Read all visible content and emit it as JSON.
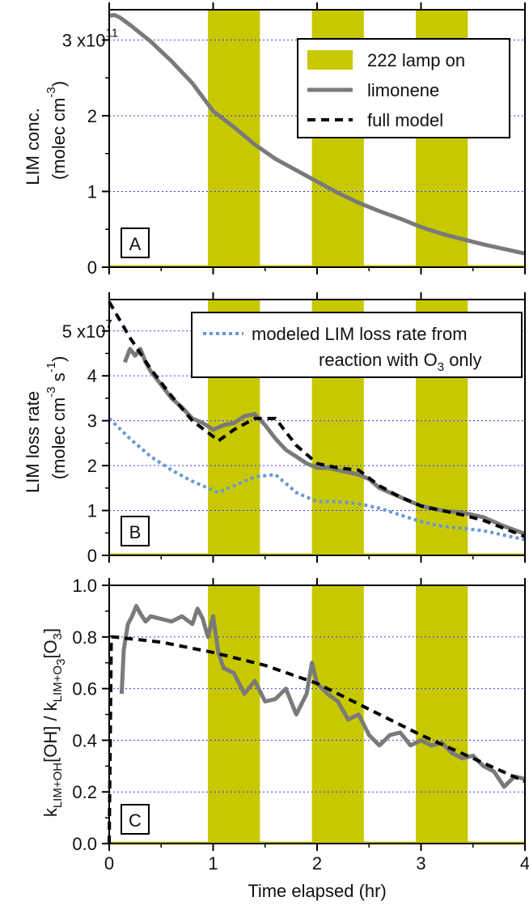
{
  "colors": {
    "lamp": "#c8c800",
    "limonene": "#7a7a7a",
    "model": "#000000",
    "o3_only": "#6a9ad0",
    "grid": "#3a3aff"
  },
  "xaxis": {
    "label": "Time elapsed (hr)",
    "range": [
      0,
      4
    ],
    "ticks": [
      0,
      1,
      2,
      3,
      4
    ],
    "tick_labels": [
      "0",
      "1",
      "2",
      "3",
      "4"
    ]
  },
  "lamp_on_intervals": [
    [
      0.95,
      1.45
    ],
    [
      1.95,
      2.45
    ],
    [
      2.95,
      3.45
    ]
  ],
  "panels": [
    {
      "id": "A",
      "panel_label": "A",
      "ylabel_line1": "LIM conc.",
      "ylabel_line2_pre": "(molec cm",
      "ylabel_line2_sup": "-3",
      "ylabel_line2_post": ")",
      "yrange": [
        0,
        3.4
      ],
      "ytick_values": [
        0,
        1,
        2,
        3
      ],
      "ytick_labels": [
        "0",
        "1",
        "2",
        "3"
      ],
      "exponent_base": "x10",
      "exponent_power": "11",
      "legend": {
        "lamp": "222 lamp on",
        "limonene": "limonene",
        "model": "full model"
      }
    },
    {
      "id": "B",
      "panel_label": "B",
      "ylabel_line1": "LIM loss rate",
      "ylabel_line2_pre": "(molec cm",
      "ylabel_line2_sup1": "-3",
      "ylabel_line2_mid": " s",
      "ylabel_line2_sup2": "-1",
      "ylabel_line2_post": ")",
      "yrange": [
        0,
        5.7
      ],
      "ytick_values": [
        0,
        1,
        2,
        3,
        4,
        5
      ],
      "ytick_labels": [
        "0",
        "1",
        "2",
        "3",
        "4",
        "5"
      ],
      "exponent_base": "x10",
      "exponent_power": "7",
      "legend": {
        "line1": "modeled LIM loss rate from",
        "line2_pre": "reaction with O",
        "line2_sub": "3",
        "line2_post": " only"
      }
    },
    {
      "id": "C",
      "panel_label": "C",
      "ylabel_k1": "k",
      "ylabel_k1_sub": "LIM+OH",
      "ylabel_mid": "[OH] / k",
      "ylabel_k2_sub_pre": "LIM+O",
      "ylabel_k2_sub_sub": "3",
      "ylabel_o3_pre": "[O",
      "ylabel_o3_sub": "3",
      "ylabel_o3_post": "]",
      "yrange": [
        0,
        1.0
      ],
      "ytick_values": [
        0.0,
        0.2,
        0.4,
        0.6,
        0.8,
        1.0
      ],
      "ytick_labels": [
        "0.0",
        "0.2",
        "0.4",
        "0.6",
        "0.8",
        "1.0"
      ]
    }
  ],
  "chart_data": [
    {
      "type": "line",
      "panel": "A",
      "series": [
        {
          "name": "limonene",
          "x": [
            0.0,
            0.05,
            0.1,
            0.2,
            0.4,
            0.6,
            0.8,
            1.0,
            1.2,
            1.4,
            1.6,
            1.8,
            2.0,
            2.2,
            2.4,
            2.6,
            2.8,
            3.0,
            3.2,
            3.4,
            3.6,
            3.8,
            4.0
          ],
          "y": [
            3.32,
            3.33,
            3.3,
            3.2,
            2.98,
            2.72,
            2.43,
            2.06,
            1.85,
            1.62,
            1.43,
            1.28,
            1.13,
            0.98,
            0.85,
            0.74,
            0.64,
            0.53,
            0.44,
            0.37,
            0.3,
            0.24,
            0.18
          ]
        },
        {
          "name": "full model",
          "x": [],
          "y": []
        }
      ]
    },
    {
      "type": "line",
      "panel": "B",
      "series": [
        {
          "name": "limonene",
          "x": [
            0.15,
            0.2,
            0.25,
            0.3,
            0.35,
            0.4,
            0.5,
            0.6,
            0.7,
            0.8,
            0.9,
            1.0,
            1.1,
            1.2,
            1.3,
            1.4,
            1.5,
            1.6,
            1.7,
            1.8,
            1.9,
            2.0,
            2.1,
            2.2,
            2.3,
            2.4,
            2.5,
            2.6,
            2.7,
            2.8,
            2.9,
            3.0,
            3.2,
            3.4,
            3.6,
            3.8,
            4.0
          ],
          "y": [
            4.3,
            4.6,
            4.45,
            4.6,
            4.3,
            4.1,
            3.8,
            3.5,
            3.3,
            3.05,
            2.95,
            2.8,
            2.9,
            2.95,
            3.1,
            3.15,
            2.9,
            2.6,
            2.35,
            2.2,
            2.05,
            1.95,
            1.95,
            1.9,
            1.85,
            1.8,
            1.7,
            1.5,
            1.4,
            1.3,
            1.2,
            1.1,
            1.0,
            0.95,
            0.85,
            0.65,
            0.48
          ]
        },
        {
          "name": "full model",
          "x": [
            0.0,
            0.2,
            0.4,
            0.6,
            0.8,
            1.0,
            1.05,
            1.2,
            1.4,
            1.6,
            1.8,
            2.0,
            2.2,
            2.4,
            2.6,
            2.8,
            3.0,
            3.2,
            3.4,
            3.6,
            3.8,
            4.0
          ],
          "y": [
            5.65,
            4.85,
            4.15,
            3.55,
            3.0,
            2.65,
            2.55,
            2.8,
            3.05,
            3.05,
            2.45,
            2.05,
            1.95,
            1.9,
            1.55,
            1.3,
            1.1,
            1.0,
            0.9,
            0.78,
            0.6,
            0.42
          ]
        },
        {
          "name": "modeled LIM loss rate from reaction with O3 only",
          "x": [
            0.0,
            0.2,
            0.4,
            0.6,
            0.8,
            1.0,
            1.05,
            1.2,
            1.4,
            1.6,
            1.8,
            2.0,
            2.2,
            2.4,
            2.6,
            2.8,
            3.0,
            3.2,
            3.4,
            3.6,
            3.8,
            4.0
          ],
          "y": [
            3.05,
            2.6,
            2.2,
            1.9,
            1.65,
            1.45,
            1.4,
            1.55,
            1.75,
            1.8,
            1.4,
            1.2,
            1.2,
            1.15,
            1.05,
            0.9,
            0.75,
            0.65,
            0.6,
            0.55,
            0.45,
            0.35
          ]
        }
      ]
    },
    {
      "type": "line",
      "panel": "C",
      "series": [
        {
          "name": "limonene",
          "x": [
            0.12,
            0.14,
            0.18,
            0.22,
            0.26,
            0.3,
            0.35,
            0.4,
            0.5,
            0.6,
            0.7,
            0.8,
            0.85,
            0.9,
            0.95,
            1.0,
            1.05,
            1.1,
            1.2,
            1.3,
            1.4,
            1.5,
            1.6,
            1.7,
            1.8,
            1.9,
            1.95,
            2.0,
            2.1,
            2.2,
            2.3,
            2.4,
            2.5,
            2.6,
            2.7,
            2.8,
            2.9,
            3.0,
            3.1,
            3.2,
            3.3,
            3.4,
            3.5,
            3.6,
            3.7,
            3.8,
            3.9,
            4.0
          ],
          "y": [
            0.58,
            0.75,
            0.85,
            0.88,
            0.92,
            0.89,
            0.86,
            0.88,
            0.87,
            0.86,
            0.88,
            0.85,
            0.91,
            0.87,
            0.8,
            0.88,
            0.74,
            0.68,
            0.66,
            0.58,
            0.63,
            0.55,
            0.56,
            0.6,
            0.5,
            0.58,
            0.7,
            0.62,
            0.58,
            0.55,
            0.48,
            0.5,
            0.42,
            0.38,
            0.42,
            0.43,
            0.38,
            0.4,
            0.38,
            0.39,
            0.35,
            0.33,
            0.34,
            0.3,
            0.28,
            0.22,
            0.26,
            0.25
          ]
        },
        {
          "name": "full model",
          "x": [
            0.0,
            0.02,
            0.05,
            0.5,
            1.0,
            1.5,
            2.0,
            2.5,
            3.0,
            3.5,
            4.0
          ],
          "y": [
            0.0,
            0.8,
            0.8,
            0.78,
            0.74,
            0.69,
            0.62,
            0.52,
            0.42,
            0.33,
            0.24
          ]
        }
      ]
    }
  ]
}
